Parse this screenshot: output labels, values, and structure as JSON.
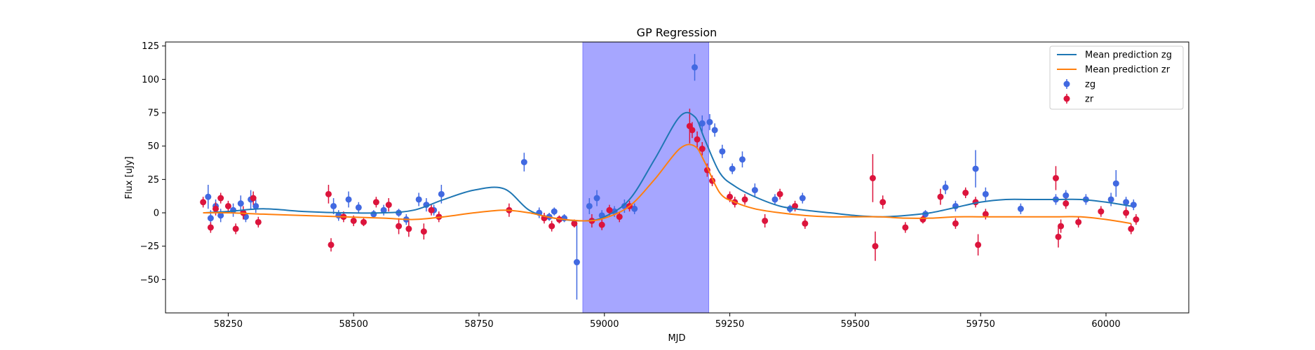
{
  "chart_data": {
    "type": "scatter",
    "title": "GP Regression",
    "xlabel": "MJD",
    "ylabel": "Flux [uJy]",
    "xlim": [
      58125,
      60165
    ],
    "ylim": [
      -75,
      128
    ],
    "xticks": [
      58250,
      58500,
      58750,
      59000,
      59250,
      59500,
      59750,
      60000
    ],
    "yticks": [
      -50,
      -25,
      0,
      25,
      50,
      75,
      100,
      125
    ],
    "grid": false,
    "legend_position": "top-right",
    "shaded_region": {
      "x0": 58957,
      "x1": 59208,
      "color": "#a6a6ff"
    },
    "series": [
      {
        "name": "Mean prediction zg",
        "kind": "line",
        "color": "#1f77b4",
        "x": [
          58200,
          58250,
          58320,
          58400,
          58480,
          58560,
          58620,
          58680,
          58740,
          58800,
          58850,
          58900,
          58960,
          59000,
          59050,
          59100,
          59150,
          59180,
          59200,
          59230,
          59260,
          59300,
          59350,
          59400,
          59450,
          59500,
          59550,
          59600,
          59650,
          59700,
          59750,
          59800,
          59850,
          59900,
          59950,
          60000,
          60050
        ],
        "y": [
          0,
          1,
          3,
          1,
          0,
          0,
          2,
          10,
          17,
          18,
          2,
          -4,
          -6,
          -3,
          10,
          40,
          72,
          72,
          55,
          30,
          20,
          12,
          5,
          2,
          0,
          -2,
          -3,
          -2,
          0,
          4,
          8,
          10,
          10,
          10,
          10,
          8,
          5
        ]
      },
      {
        "name": "Mean prediction zr",
        "kind": "line",
        "color": "#ff7f0e",
        "x": [
          58200,
          58250,
          58320,
          58400,
          58480,
          58560,
          58620,
          58680,
          58740,
          58800,
          58850,
          58900,
          58960,
          59000,
          59050,
          59100,
          59150,
          59180,
          59200,
          59230,
          59260,
          59300,
          59350,
          59400,
          59450,
          59500,
          59550,
          59600,
          59650,
          59700,
          59750,
          59800,
          59850,
          59900,
          59950,
          60000,
          60050
        ],
        "y": [
          0,
          0,
          -1,
          -2,
          -3,
          -4,
          -5,
          -3,
          0,
          2,
          0,
          -4,
          -6,
          -4,
          5,
          25,
          48,
          50,
          38,
          15,
          8,
          3,
          0,
          -2,
          -3,
          -3,
          -3,
          -4,
          -4,
          -3,
          -3,
          -3,
          -3,
          -3,
          -3,
          -5,
          -8
        ]
      },
      {
        "name": "zg",
        "kind": "errorbar",
        "color": "#4169e1",
        "x": [
          58210,
          58215,
          58225,
          58235,
          58260,
          58275,
          58285,
          58295,
          58305,
          58460,
          58470,
          58490,
          58510,
          58540,
          58560,
          58590,
          58605,
          58630,
          58645,
          58660,
          58675,
          58840,
          58870,
          58890,
          58900,
          58920,
          58945,
          58970,
          58985,
          58995,
          59020,
          59040,
          59060,
          59180,
          59195,
          59210,
          59220,
          59235,
          59255,
          59275,
          59300,
          59340,
          59370,
          59395,
          59640,
          59680,
          59700,
          59740,
          59760,
          59830,
          59900,
          59920,
          59960,
          60010,
          60020,
          60040,
          60055
        ],
        "y": [
          12,
          -4,
          5,
          -2,
          2,
          7,
          -3,
          10,
          5,
          5,
          -2,
          10,
          4,
          -1,
          2,
          0,
          -5,
          10,
          6,
          2,
          14,
          38,
          0,
          -3,
          1,
          -4,
          -37,
          5,
          11,
          -2,
          1,
          5,
          3,
          109,
          67,
          68,
          62,
          46,
          33,
          40,
          17,
          10,
          3,
          11,
          -1,
          19,
          5,
          33,
          14,
          3,
          10,
          13,
          10,
          10,
          22,
          8,
          6
        ],
        "err": [
          9,
          6,
          5,
          5,
          5,
          6,
          4,
          7,
          5,
          6,
          4,
          6,
          4,
          3,
          4,
          3,
          4,
          5,
          5,
          4,
          7,
          7,
          4,
          3,
          3,
          3,
          28,
          6,
          6,
          4,
          4,
          5,
          4,
          10,
          6,
          6,
          5,
          5,
          4,
          6,
          5,
          4,
          3,
          4,
          3,
          5,
          4,
          14,
          5,
          4,
          4,
          4,
          4,
          5,
          10,
          4,
          4
        ]
      },
      {
        "name": "zr",
        "kind": "errorbar",
        "color": "#dc143c",
        "x": [
          58200,
          58215,
          58225,
          58235,
          58250,
          58265,
          58280,
          58300,
          58310,
          58450,
          58455,
          58480,
          58500,
          58520,
          58545,
          58570,
          58590,
          58610,
          58640,
          58655,
          58670,
          58810,
          58880,
          58895,
          58910,
          58940,
          58975,
          58995,
          59010,
          59030,
          59050,
          59170,
          59175,
          59185,
          59195,
          59205,
          59215,
          59250,
          59260,
          59280,
          59320,
          59350,
          59380,
          59400,
          59535,
          59540,
          59555,
          59600,
          59635,
          59670,
          59700,
          59720,
          59740,
          59745,
          59760,
          59900,
          59905,
          59910,
          59920,
          59945,
          59990,
          60040,
          60050,
          60060
        ],
        "y": [
          8,
          -11,
          3,
          11,
          5,
          -12,
          0,
          11,
          -7,
          14,
          -24,
          -3,
          -6,
          -7,
          8,
          6,
          -10,
          -12,
          -14,
          2,
          -3,
          2,
          -4,
          -10,
          -5,
          -8,
          -6,
          -9,
          2,
          -3,
          5,
          65,
          62,
          55,
          48,
          32,
          24,
          12,
          8,
          10,
          -6,
          14,
          5,
          -8,
          26,
          -25,
          8,
          -11,
          -5,
          12,
          -8,
          15,
          8,
          -24,
          -1,
          26,
          -18,
          -10,
          7,
          -7,
          1,
          0,
          -12,
          -5
        ],
        "err": [
          4,
          4,
          5,
          4,
          4,
          4,
          5,
          5,
          4,
          7,
          5,
          4,
          4,
          3,
          4,
          5,
          6,
          6,
          6,
          4,
          4,
          5,
          4,
          4,
          3,
          3,
          5,
          4,
          4,
          4,
          4,
          13,
          6,
          6,
          5,
          5,
          4,
          4,
          4,
          4,
          5,
          4,
          4,
          4,
          18,
          11,
          5,
          4,
          3,
          6,
          4,
          4,
          4,
          8,
          4,
          9,
          8,
          5,
          4,
          4,
          4,
          4,
          4,
          4
        ]
      }
    ]
  }
}
